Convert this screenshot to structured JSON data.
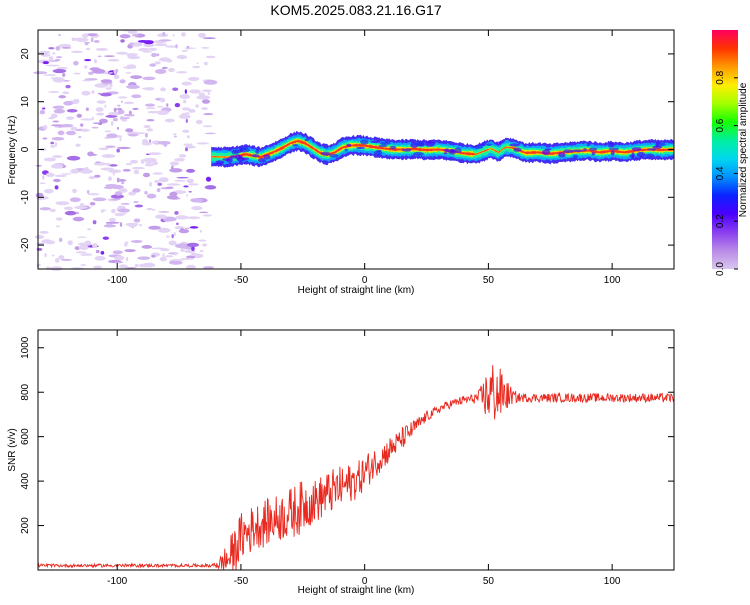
{
  "title": "KOM5.2025.083.21.16.G17",
  "chart_data": [
    {
      "type": "heatmap",
      "xlabel": "Height of straight line (km)",
      "ylabel": "Frequency (Hz)",
      "xlim": [
        -132,
        125
      ],
      "ylim": [
        -25,
        25
      ],
      "xticks": [
        -100,
        -50,
        0,
        50,
        100
      ],
      "yticks": [
        -20,
        -10,
        0,
        10,
        20
      ],
      "colorbar": {
        "label": "Normalized spectral amplitude",
        "ticks": [
          0.0,
          0.2,
          0.4,
          0.6,
          0.8
        ],
        "colors": [
          "#d9c6ef",
          "#b98ae6",
          "#8a3ef0",
          "#4b00ff",
          "#0a22ff",
          "#0090ff",
          "#00d7ee",
          "#00f0a0",
          "#16ff00",
          "#a4ff00",
          "#ffee00",
          "#ff9900",
          "#ff3300",
          "#ff0060"
        ]
      },
      "ridge": {
        "x": [
          -62,
          -55,
          -48,
          -42,
          -37,
          -33,
          -30,
          -27,
          -24,
          -21,
          -18,
          -15,
          -12,
          -9,
          -6,
          -3,
          0,
          4,
          8,
          12,
          16,
          20,
          25,
          30,
          35,
          40,
          45,
          48,
          51,
          54,
          57,
          60,
          65,
          70,
          75,
          80,
          85,
          90,
          95,
          100,
          105,
          110,
          115,
          120,
          125
        ],
        "y": [
          -1.5,
          -1.6,
          -1.0,
          -1.6,
          -0.6,
          0.4,
          1.3,
          1.8,
          1.3,
          0.3,
          -0.7,
          -1.1,
          -0.6,
          0.4,
          0.8,
          0.9,
          0.8,
          0.5,
          0.2,
          0.0,
          0.0,
          0.1,
          -0.1,
          0.0,
          -0.3,
          -0.8,
          -1.0,
          -0.4,
          0.2,
          -0.6,
          0.5,
          0.3,
          -0.7,
          -0.6,
          -0.9,
          -0.6,
          -0.4,
          -0.2,
          -0.6,
          -0.3,
          -0.6,
          -0.2,
          0.0,
          -0.1,
          0.0
        ]
      }
    },
    {
      "type": "line",
      "xlabel": "Height of straight line (km)",
      "ylabel": "SNR (v/v)",
      "xlim": [
        -132,
        125
      ],
      "ylim": [
        0,
        1080
      ],
      "xticks": [
        -100,
        -50,
        0,
        50,
        100
      ],
      "yticks": [
        200,
        400,
        600,
        800,
        1000
      ],
      "series": [
        {
          "color": "#e8281e",
          "x": [
            -132,
            -110,
            -90,
            -70,
            -62,
            -58,
            -55,
            -52,
            -50,
            -47,
            -44,
            -41,
            -38,
            -35,
            -32,
            -29,
            -26,
            -23,
            -20,
            -17,
            -14,
            -11,
            -8,
            -5,
            -2,
            1,
            4,
            7,
            10,
            13,
            16,
            19,
            22,
            25,
            28,
            31,
            34,
            37,
            40,
            43,
            46,
            48,
            50,
            52,
            54,
            56,
            58,
            60,
            63,
            66,
            70,
            75,
            80,
            90,
            100,
            110,
            120,
            125
          ],
          "y": [
            20,
            20,
            20,
            20,
            20,
            30,
            50,
            100,
            150,
            170,
            200,
            210,
            220,
            235,
            245,
            260,
            280,
            300,
            310,
            330,
            350,
            365,
            380,
            395,
            415,
            450,
            480,
            510,
            540,
            570,
            600,
            630,
            660,
            690,
            710,
            730,
            745,
            755,
            765,
            770,
            775,
            780,
            790,
            800,
            790,
            790,
            785,
            780,
            775,
            775,
            775,
            775,
            775,
            775,
            775,
            775,
            775,
            775
          ],
          "noise": [
            0,
            0,
            0,
            0,
            0,
            40,
            90,
            100,
            110,
            110,
            100,
            110,
            100,
            110,
            110,
            120,
            120,
            110,
            100,
            100,
            100,
            100,
            90,
            90,
            80,
            80,
            70,
            60,
            60,
            50,
            50,
            40,
            30,
            25,
            20,
            20,
            20,
            20,
            20,
            20,
            30,
            80,
            130,
            150,
            130,
            100,
            60,
            30,
            20,
            20,
            20,
            20,
            20,
            20,
            20,
            20,
            20,
            20
          ]
        }
      ]
    }
  ]
}
